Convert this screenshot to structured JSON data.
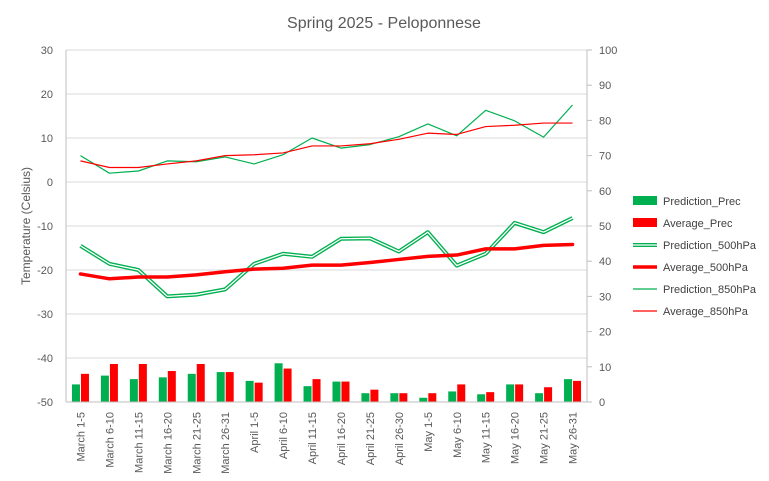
{
  "chart_data": {
    "type": "bar+line",
    "title": "Spring 2025 - Peloponnese",
    "ylabel_left": "Temperature (Celsius)",
    "ylabel_right": "",
    "ylim_left": [
      -50,
      30
    ],
    "ylim_right": [
      0,
      100
    ],
    "yticks_left": [
      "-50",
      "-40",
      "-30",
      "-20",
      "-10",
      "0",
      "10",
      "20",
      "30"
    ],
    "yticks_right": [
      "0",
      "10",
      "20",
      "30",
      "40",
      "50",
      "60",
      "70",
      "80",
      "90",
      "100"
    ],
    "categories": [
      "March 1-5",
      "March 6-10",
      "March 11-15",
      "March 16-20",
      "March 21-25",
      "March 26-31",
      "April 1-5",
      "April 6-10",
      "April 11-15",
      "April 16-20",
      "April 21-25",
      "April 26-30",
      "May 1-5",
      "May 6-10",
      "May 11-15",
      "May 16-20",
      "May 21-25",
      "May 26-31"
    ],
    "gridlines": true,
    "legend_position": "right",
    "series": [
      {
        "name": "Prediction_Prec",
        "kind": "bar",
        "axis": "right",
        "color": "#00B050",
        "values": [
          5,
          7.5,
          6.5,
          7,
          8,
          8.5,
          6,
          11,
          4.5,
          5.8,
          2.5,
          2.5,
          1.2,
          3,
          2.2,
          5,
          2.5,
          6.5
        ]
      },
      {
        "name": "Average_Prec",
        "kind": "bar",
        "axis": "right",
        "color": "#FF0000",
        "values": [
          8,
          10.8,
          10.8,
          8.8,
          10.8,
          8.5,
          5.5,
          9.5,
          6.5,
          5.8,
          3.5,
          2.5,
          2.5,
          5,
          2.8,
          5,
          4.2,
          6
        ]
      },
      {
        "name": "Prediction_500hPa",
        "kind": "line-double",
        "axis": "left",
        "color": "#00B050",
        "values": [
          -14.5,
          -18.6,
          -20,
          -26,
          -25.6,
          -24.4,
          -18.6,
          -16.3,
          -17,
          -12.9,
          -12.8,
          -15.8,
          -11.4,
          -19,
          -16.3,
          -9.3,
          -11.4,
          -8.2
        ]
      },
      {
        "name": "Average_500hPa",
        "kind": "line-thick",
        "axis": "left",
        "color": "#FF0000",
        "values": [
          -20.9,
          -22,
          -21.6,
          -21.6,
          -21.1,
          -20.4,
          -19.8,
          -19.6,
          -18.9,
          -18.9,
          -18.3,
          -17.6,
          -16.9,
          -16.6,
          -15.2,
          -15.2,
          -14.4,
          -14.2
        ]
      },
      {
        "name": "Prediction_850hPa",
        "kind": "line",
        "axis": "left",
        "color": "#00B050",
        "values": [
          6,
          2,
          2.5,
          4.8,
          4.6,
          5.7,
          4.1,
          6.2,
          10,
          7.7,
          8.5,
          10.3,
          13.2,
          10.5,
          16.3,
          13.9,
          10.2,
          17.5
        ]
      },
      {
        "name": "Average_850hPa",
        "kind": "line",
        "axis": "left",
        "color": "#FF0000",
        "values": [
          4.8,
          3.3,
          3.3,
          4.1,
          4.8,
          6,
          6.2,
          6.6,
          8.2,
          8.2,
          8.7,
          9.7,
          11.1,
          10.8,
          12.6,
          12.9,
          13.4,
          13.4
        ]
      }
    ]
  }
}
